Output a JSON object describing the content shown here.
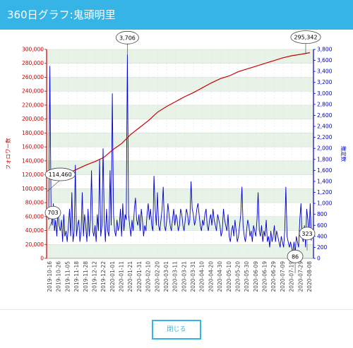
{
  "dialog": {
    "title": "360日グラフ:鬼頭明里",
    "close_label": "閉じる"
  },
  "colors": {
    "header": "#36b4e6",
    "followers_line": "#cc0000",
    "likes_line": "#0000cc",
    "band": "#e8f3e8",
    "button": "#36b4e6"
  },
  "chart_data": {
    "type": "line",
    "x_labels": [
      "2019-10-16",
      "2019-10-26",
      "2019-11-05",
      "2019-11-18",
      "2019-11-28",
      "2019-12-12",
      "2019-12-22",
      "2020-01-01",
      "2020-01-11",
      "2020-01-21",
      "2020-01-31",
      "2020-02-10",
      "2020-02-20",
      "2020-03-01",
      "2020-03-11",
      "2020-03-21",
      "2020-03-31",
      "2020-04-10",
      "2020-04-20",
      "2020-04-30",
      "2020-05-10",
      "2020-05-20",
      "2020-05-30",
      "2020-06-09",
      "2020-06-19",
      "2020-06-29",
      "2020-07-09",
      "2020-07-19",
      "2020-07-29",
      "2020-08-08"
    ],
    "y_left_label": "フォロワー数",
    "y_left_ticks": [
      "0",
      "20,000",
      "40,000",
      "60,000",
      "80,000",
      "100,000",
      "120,000",
      "140,000",
      "160,000",
      "180,000",
      "200,000",
      "220,000",
      "240,000",
      "260,000",
      "280,000",
      "300,000"
    ],
    "y_left_range": [
      0,
      300000
    ],
    "y_right_label": "推定数",
    "y_right_ticks": [
      "0",
      "200",
      "400",
      "600",
      "800",
      "1,000",
      "1,200",
      "1,400",
      "1,600",
      "1,800",
      "2,000",
      "2,200",
      "2,400",
      "2,600",
      "2,800",
      "3,000",
      "3,200",
      "3,400",
      "3,600",
      "3,800"
    ],
    "y_right_range": [
      0,
      3800
    ],
    "grid": true,
    "series": [
      {
        "name": "フォロワー数",
        "axis": "left",
        "points": [
          [
            0,
            114460
          ],
          [
            1,
            117000
          ],
          [
            2,
            122000
          ],
          [
            3,
            128000
          ],
          [
            4,
            134000
          ],
          [
            5,
            139000
          ],
          [
            6,
            145000
          ],
          [
            7,
            156000
          ],
          [
            8,
            165000
          ],
          [
            9,
            178000
          ],
          [
            10,
            188000
          ],
          [
            11,
            198000
          ],
          [
            12,
            210000
          ],
          [
            13,
            218000
          ],
          [
            14,
            225000
          ],
          [
            15,
            232000
          ],
          [
            16,
            238000
          ],
          [
            17,
            245000
          ],
          [
            18,
            252000
          ],
          [
            19,
            258000
          ],
          [
            20,
            262000
          ],
          [
            21,
            268000
          ],
          [
            22,
            272000
          ],
          [
            23,
            276000
          ],
          [
            24,
            280000
          ],
          [
            25,
            284000
          ],
          [
            26,
            288000
          ],
          [
            27,
            291000
          ],
          [
            28,
            293000
          ],
          [
            29,
            295342
          ]
        ]
      },
      {
        "name": "推定数",
        "axis": "right",
        "values": [
          703,
          3500,
          900,
          600,
          1000,
          500,
          700,
          400,
          900,
          600,
          500,
          700,
          300,
          800,
          400,
          500,
          300,
          600,
          900,
          400,
          1200,
          300,
          500,
          1700,
          400,
          600,
          700,
          300,
          500,
          1200,
          400,
          800,
          600,
          300,
          900,
          400,
          700,
          1600,
          500,
          400,
          600,
          300,
          800,
          500,
          1800,
          400,
          600,
          2000,
          700,
          300,
          900,
          500,
          400,
          1600,
          600,
          3000,
          800,
          500,
          400,
          700,
          500,
          600,
          900,
          400,
          1000,
          500,
          800,
          700,
          3706,
          800,
          600,
          400,
          700,
          500,
          900,
          1100,
          700,
          600,
          800,
          500,
          900,
          700,
          400,
          600,
          500,
          800,
          1000,
          700,
          900,
          600,
          500,
          1500,
          900,
          600,
          1200,
          600,
          500,
          700,
          900,
          1300,
          600,
          500,
          700,
          1000,
          800,
          600,
          500,
          700,
          900,
          600,
          800,
          700,
          500,
          600,
          900,
          800,
          600,
          500,
          700,
          900,
          800,
          600,
          700,
          1400,
          900,
          800,
          600,
          700,
          900,
          1000,
          800,
          600,
          500,
          700,
          600,
          800,
          900,
          600,
          500,
          700,
          800,
          600,
          900,
          700,
          600,
          500,
          800,
          700,
          600,
          400,
          500,
          900,
          700,
          600,
          500,
          800,
          400,
          300,
          500,
          600,
          400,
          700,
          500,
          300,
          400,
          600,
          800,
          1300,
          600,
          400,
          300,
          500,
          700,
          600,
          400,
          500,
          300,
          600,
          500,
          400,
          700,
          1200,
          500,
          400,
          600,
          300,
          500,
          400,
          700,
          300,
          400,
          200,
          500,
          300,
          400,
          600,
          300,
          500,
          400,
          300,
          200,
          400,
          300,
          200,
          500,
          1300,
          400,
          300,
          200,
          300,
          200,
          100,
          300,
          86,
          400,
          300,
          200,
          700,
          1000,
          400,
          300,
          600,
          200,
          900,
          700,
          400,
          1000,
          323
        ]
      }
    ],
    "annotations": [
      {
        "text": "3,706",
        "series": "推定数",
        "value": 3706,
        "x_index": 9
      },
      {
        "text": "295,342",
        "series": "フォロワー数",
        "value": 295342,
        "x_index": 29
      },
      {
        "text": "114,460",
        "series": "フォロワー数",
        "value": 114460,
        "x_index": 0
      },
      {
        "text": "703",
        "series": "推定数",
        "value": 703,
        "x_index": 0
      },
      {
        "text": "323",
        "series": "推定数",
        "value": 323,
        "x_index": 29
      },
      {
        "text": "86",
        "series": "推定数",
        "value": 86,
        "x_index": 28
      }
    ]
  }
}
